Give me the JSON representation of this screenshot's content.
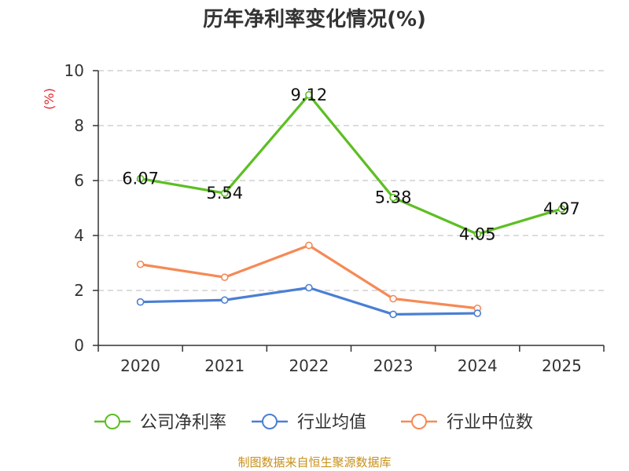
{
  "chart_data": {
    "type": "line",
    "title": "历年净利率变化情况(%)",
    "ylabel": "(%)",
    "xlabel": "",
    "categories": [
      "2020",
      "2021",
      "2022",
      "2023",
      "2024",
      "2025"
    ],
    "ylim": [
      0,
      10
    ],
    "yticks": [
      0,
      2,
      4,
      6,
      8,
      10
    ],
    "grid": true,
    "legend_position": "bottom",
    "series": [
      {
        "name": "公司净利率",
        "color": "#5cbf22",
        "values": [
          6.07,
          5.54,
          9.12,
          5.38,
          4.05,
          4.97
        ],
        "labels": [
          "6.07",
          "5.54",
          "9.12",
          "5.38",
          "4.05",
          "4.97"
        ],
        "show_labels": true
      },
      {
        "name": "行业均值",
        "color": "#4a7fd4",
        "values": [
          1.58,
          1.65,
          2.1,
          1.13,
          1.17,
          null
        ],
        "show_labels": false
      },
      {
        "name": "行业中位数",
        "color": "#f58a56",
        "values": [
          2.95,
          2.48,
          3.64,
          1.7,
          1.35,
          null
        ],
        "show_labels": false
      }
    ]
  },
  "source": "制图数据来自恒生聚源数据库"
}
